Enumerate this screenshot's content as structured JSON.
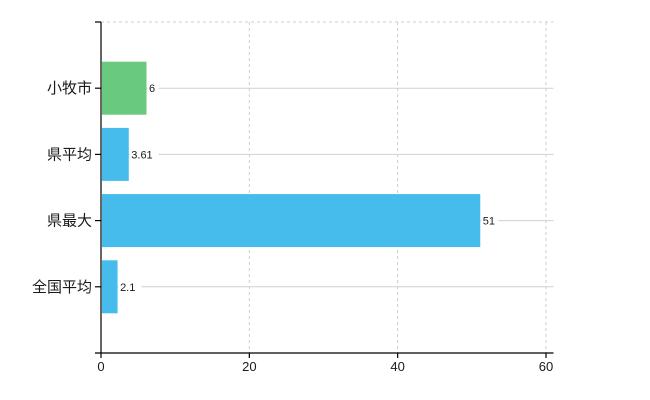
{
  "chart_data": {
    "type": "bar",
    "orientation": "horizontal",
    "title": "",
    "categories": [
      "小牧市",
      "県平均",
      "県最大",
      "全国平均"
    ],
    "values": [
      6,
      3.61,
      51,
      2.1
    ],
    "value_labels": [
      "6",
      "3.61",
      "51",
      "2.1"
    ],
    "bar_colors": [
      "#69c97e",
      "#45bceb",
      "#45bceb",
      "#45bceb"
    ],
    "x_ticks": [
      0,
      20,
      40,
      60
    ],
    "x_tick_labels": [
      "0",
      "20",
      "40",
      "60"
    ],
    "xlim": [
      0,
      60
    ],
    "legend": "none",
    "grid": {
      "vertical": "dashed",
      "horizontal": "solid",
      "top_boundary": "dashed"
    },
    "colors": {
      "background": "#ffffff",
      "grid_solid": "#cdd3cd",
      "grid_dashed": "#c9ced3",
      "axis": "#000000",
      "text": "#1a1a1a"
    }
  }
}
